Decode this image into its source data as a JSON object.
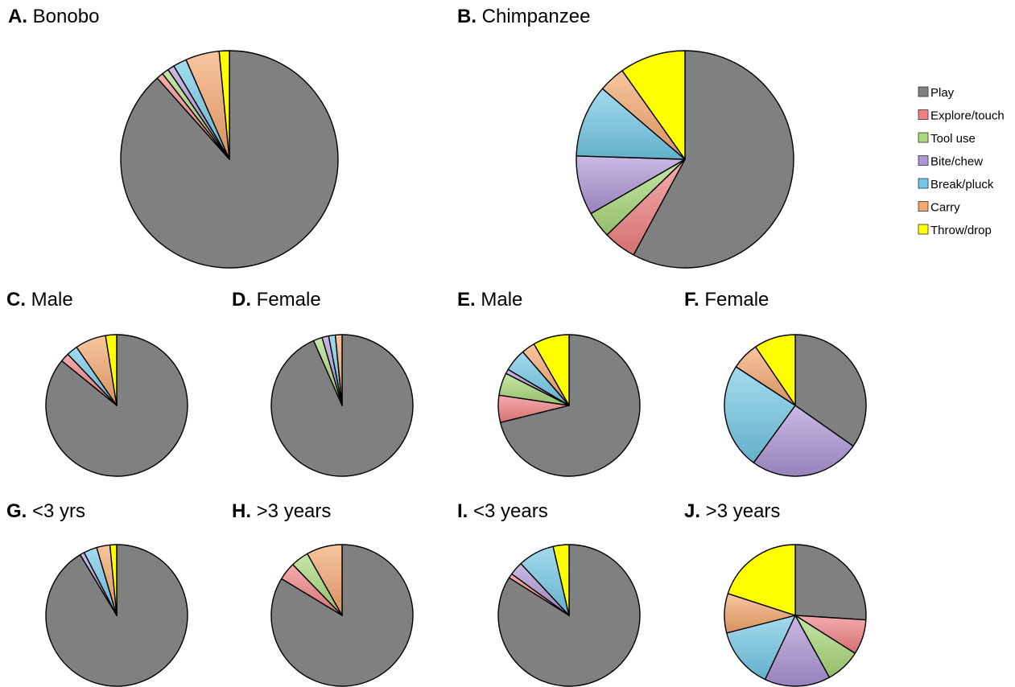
{
  "legend": {
    "items": [
      "Play",
      "Explore/touch",
      "Tool use",
      "Bite/chew",
      "Break/pluck",
      "Carry",
      "Throw/drop"
    ],
    "colors": [
      "#808080",
      "#f08080",
      "#a8d878",
      "#ad94d4",
      "#72c8e6",
      "#f4a66c",
      "#ffff00"
    ],
    "placement": "right"
  },
  "chart_data": [
    {
      "type": "pie",
      "letter": "A.",
      "title": "Bonobo",
      "categories": [
        "Play",
        "Explore/touch",
        "Tool use",
        "Bite/chew",
        "Break/pluck",
        "Carry",
        "Throw/drop"
      ],
      "values": [
        88,
        1,
        1,
        1,
        2,
        5,
        1.5
      ]
    },
    {
      "type": "pie",
      "letter": "B.",
      "title": "Chimpanzee",
      "categories": [
        "Play",
        "Explore/touch",
        "Tool use",
        "Bite/chew",
        "Break/pluck",
        "Carry",
        "Throw/drop"
      ],
      "values": [
        59,
        5,
        4,
        9,
        11,
        4,
        10
      ]
    },
    {
      "type": "pie",
      "letter": "C.",
      "title": "Male",
      "categories": [
        "Play",
        "Explore/touch",
        "Tool use",
        "Bite/chew",
        "Break/pluck",
        "Carry",
        "Throw/drop"
      ],
      "values": [
        85,
        2,
        0,
        0,
        2.5,
        7,
        2.5
      ]
    },
    {
      "type": "pie",
      "letter": "D.",
      "title": "Female",
      "categories": [
        "Play",
        "Explore/touch",
        "Tool use",
        "Bite/chew",
        "Break/pluck",
        "Carry",
        "Throw/drop"
      ],
      "values": [
        92,
        0,
        2,
        1.5,
        1.5,
        1.5,
        0
      ]
    },
    {
      "type": "pie",
      "letter": "E.",
      "title": "Male",
      "categories": [
        "Play",
        "Explore/touch",
        "Tool use",
        "Bite/chew",
        "Break/pluck",
        "Carry",
        "Throw/drop"
      ],
      "values": [
        69,
        6,
        5,
        1,
        5,
        3,
        8
      ]
    },
    {
      "type": "pie",
      "letter": "F.",
      "title": "Female",
      "categories": [
        "Play",
        "Explore/touch",
        "Tool use",
        "Bite/chew",
        "Break/pluck",
        "Carry",
        "Throw/drop"
      ],
      "values": [
        33,
        0,
        0,
        24,
        23,
        6,
        9
      ]
    },
    {
      "type": "pie",
      "letter": "G.",
      "title": "<3 yrs",
      "categories": [
        "Play",
        "Explore/touch",
        "Tool use",
        "Bite/chew",
        "Break/pluck",
        "Carry",
        "Throw/drop"
      ],
      "values": [
        90,
        0,
        0,
        1,
        3,
        3,
        1.5
      ]
    },
    {
      "type": "pie",
      "letter": "H.",
      "title": ">3 years",
      "categories": [
        "Play",
        "Explore/touch",
        "Tool use",
        "Bite/chew",
        "Break/pluck",
        "Carry",
        "Throw/drop"
      ],
      "values": [
        82,
        4,
        4,
        0,
        0,
        8,
        0
      ]
    },
    {
      "type": "pie",
      "letter": "I.",
      "title": "<3 years",
      "categories": [
        "Play",
        "Explore/touch",
        "Tool use",
        "Bite/chew",
        "Break/pluck",
        "Carry",
        "Throw/drop"
      ],
      "values": [
        81,
        1,
        0,
        3,
        8,
        0,
        3.5
      ]
    },
    {
      "type": "pie",
      "letter": "J.",
      "title": ">3 years",
      "categories": [
        "Play",
        "Explore/touch",
        "Tool use",
        "Bite/chew",
        "Break/pluck",
        "Carry",
        "Throw/drop"
      ],
      "values": [
        26,
        8,
        8,
        15,
        14,
        9,
        20
      ]
    }
  ]
}
